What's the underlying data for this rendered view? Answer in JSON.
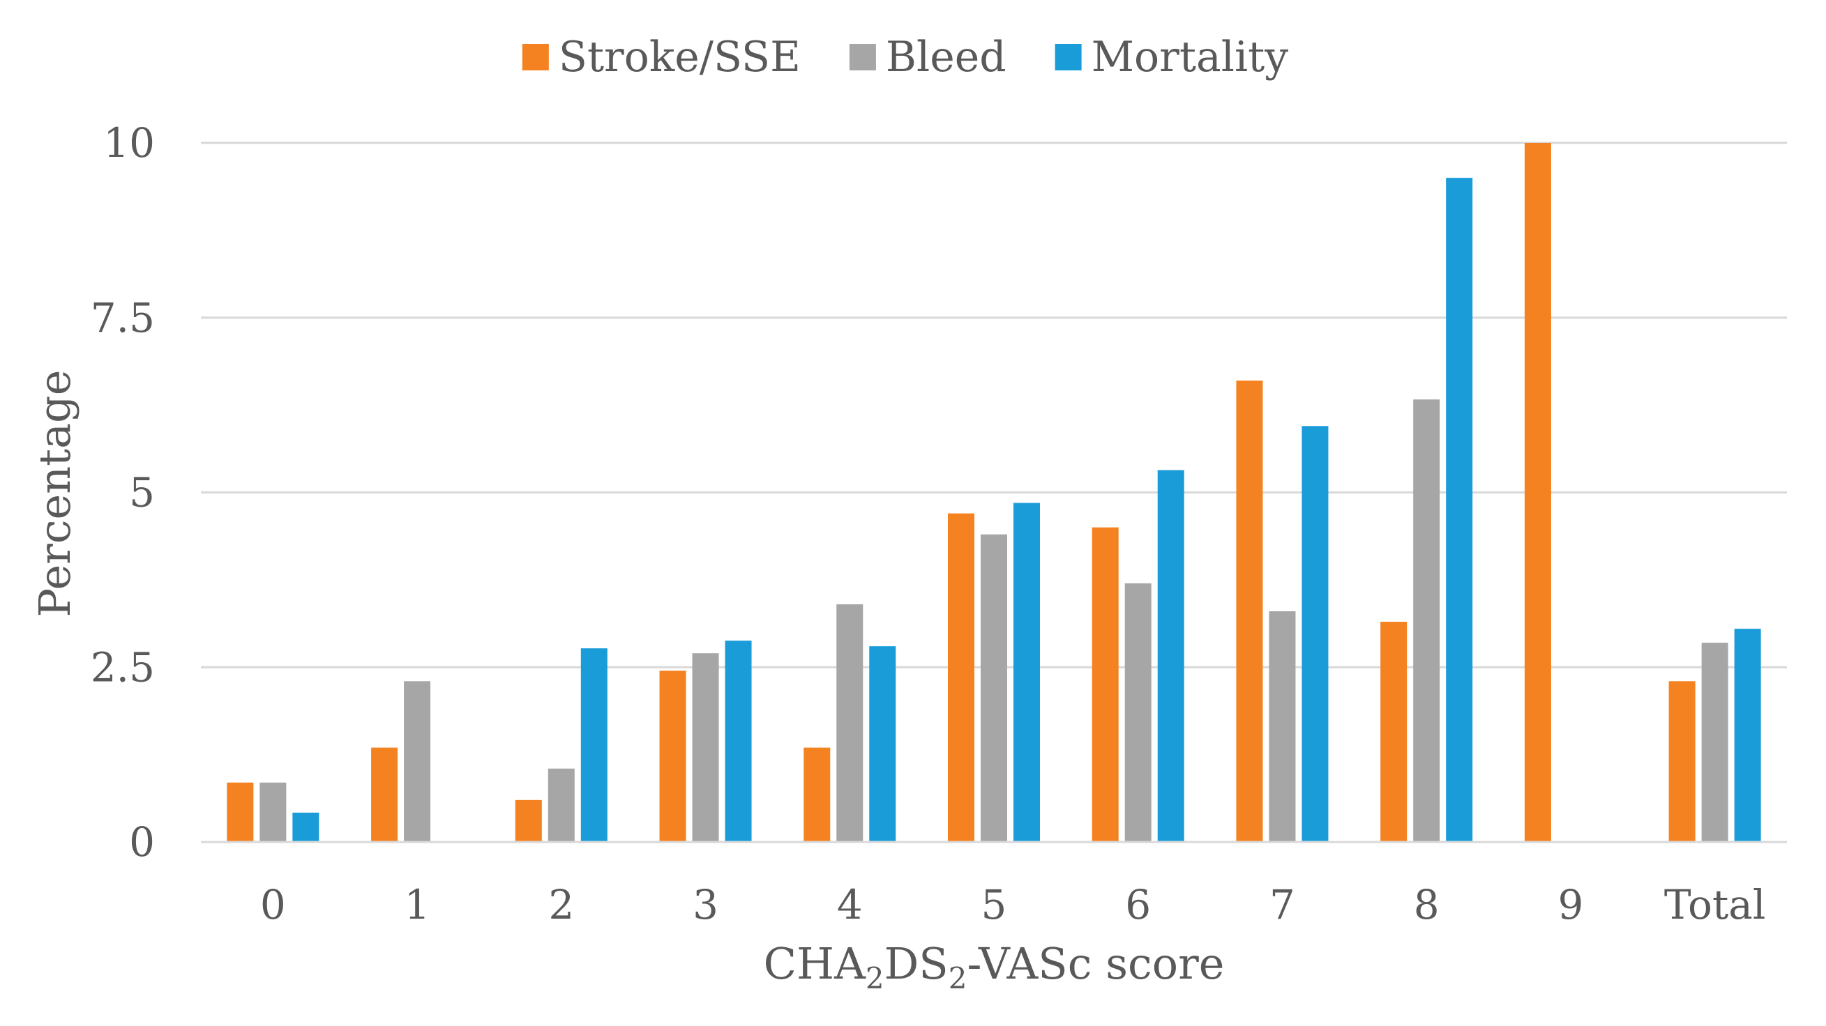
{
  "chart_data": {
    "type": "bar",
    "title": "",
    "categories": [
      "0",
      "1",
      "2",
      "3",
      "4",
      "5",
      "6",
      "7",
      "8",
      "9",
      "Total"
    ],
    "series": [
      {
        "name": "Stroke/SSE",
        "color": "#f58220",
        "values": [
          0.85,
          1.35,
          0.6,
          2.45,
          1.35,
          4.7,
          4.5,
          6.6,
          3.15,
          10.0,
          2.3
        ]
      },
      {
        "name": "Bleed",
        "color": "#a6a6a6",
        "values": [
          0.85,
          2.3,
          1.05,
          2.7,
          3.4,
          4.4,
          3.7,
          3.3,
          6.33,
          0,
          2.85
        ]
      },
      {
        "name": "Mortality",
        "color": "#1a9cd9",
        "values": [
          0.42,
          0,
          2.77,
          2.88,
          2.8,
          4.85,
          5.32,
          5.95,
          9.5,
          0,
          3.05
        ]
      }
    ],
    "y_ticks": [
      "0",
      "2.5",
      "5",
      "7.5",
      "10"
    ],
    "ylim": [
      0,
      10
    ],
    "ylabel": "Percentage",
    "xlabel": {
      "main": "CHA",
      "sub1": "2",
      "mid": "DS",
      "sub2": "2",
      "tail": "-VASc score"
    },
    "grid": true,
    "legend_position": "top-center"
  }
}
